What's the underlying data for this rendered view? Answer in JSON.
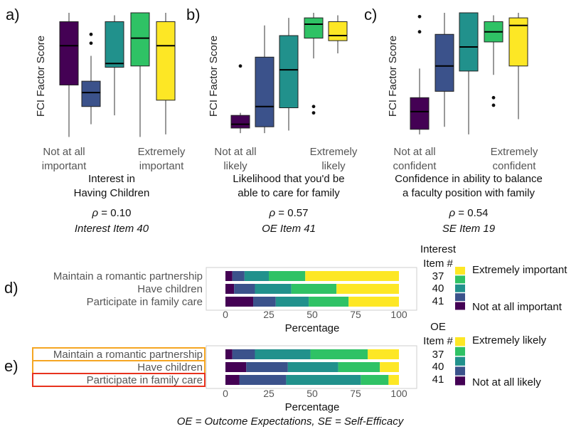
{
  "palette": [
    "#440154",
    "#3b528b",
    "#21918c",
    "#2fc265",
    "#fde725"
  ],
  "chart_data": [
    {
      "panel": "a)",
      "type": "boxplot",
      "ylabel": "FCI Factor Score",
      "xtick_left": [
        "Not at all",
        "important"
      ],
      "xtick_right": [
        "Extremely",
        "important"
      ],
      "caption": [
        "Interest in",
        "Having Children"
      ],
      "rho_symbol": "ρ",
      "rho_value": " = 0.10",
      "item": "Interest Item 40",
      "ylim": [
        0,
        100
      ],
      "boxes": [
        {
          "level": 1,
          "lo": 2,
          "q1": 43,
          "med": 74,
          "q3": 93,
          "hi": 100,
          "outliers": []
        },
        {
          "level": 2,
          "lo": 12,
          "q1": 26,
          "med": 37,
          "q3": 46,
          "hi": 66,
          "outliers": [
            76,
            83
          ]
        },
        {
          "level": 3,
          "lo": 19,
          "q1": 57,
          "med": 60,
          "q3": 93,
          "hi": 98,
          "outliers": []
        },
        {
          "level": 4,
          "lo": 2,
          "q1": 58,
          "med": 80,
          "q3": 100,
          "hi": 100,
          "outliers": []
        },
        {
          "level": 5,
          "lo": 4,
          "q1": 31,
          "med": 74,
          "q3": 93,
          "hi": 100,
          "outliers": []
        }
      ]
    },
    {
      "panel": "b)",
      "type": "boxplot",
      "ylabel": "FCI Factor Score",
      "xtick_left": [
        "Not at all",
        "likely"
      ],
      "xtick_right": [
        "Extremely",
        "likely"
      ],
      "caption": [
        "Likelihood that you'd be",
        "able to care for family"
      ],
      "rho_symbol": "ρ",
      "rho_value": " = 0.57",
      "item": "OE Item 41",
      "ylim": [
        0,
        100
      ],
      "boxes": [
        {
          "level": 1,
          "lo": 5,
          "q1": 9,
          "med": 12,
          "q3": 19,
          "hi": 21,
          "outliers": [
            58
          ]
        },
        {
          "level": 2,
          "lo": 5,
          "q1": 10,
          "med": 26,
          "q3": 65,
          "hi": 90,
          "outliers": []
        },
        {
          "level": 3,
          "lo": 7,
          "q1": 25,
          "med": 55,
          "q3": 82,
          "hi": 96,
          "outliers": []
        },
        {
          "level": 4,
          "lo": 64,
          "q1": 80,
          "med": 91,
          "q3": 96,
          "hi": 100,
          "outliers": [
            21,
            26
          ]
        },
        {
          "level": 5,
          "lo": 68,
          "q1": 78,
          "med": 82,
          "q3": 93,
          "hi": 98,
          "outliers": []
        }
      ]
    },
    {
      "panel": "c)",
      "type": "boxplot",
      "ylabel": "FCI Factor Score",
      "xtick_left": [
        "Not at all",
        "confident"
      ],
      "xtick_right": [
        "Extremely",
        "confident"
      ],
      "caption": [
        "Confidence in ability to balance",
        "a faculty position with family"
      ],
      "rho_symbol": "ρ",
      "rho_value": " = 0.54",
      "item": "SE Item 19",
      "ylim": [
        0,
        100
      ],
      "boxes": [
        {
          "level": 1,
          "lo": 4,
          "q1": 8,
          "med": 22,
          "q3": 33,
          "hi": 56,
          "outliers": [
            85,
            97
          ]
        },
        {
          "level": 2,
          "lo": 10,
          "q1": 38,
          "med": 58,
          "q3": 83,
          "hi": 100,
          "outliers": []
        },
        {
          "level": 3,
          "lo": 4,
          "q1": 54,
          "med": 73,
          "q3": 100,
          "hi": 100,
          "outliers": []
        },
        {
          "level": 4,
          "lo": 51,
          "q1": 77,
          "med": 85,
          "q3": 93,
          "hi": 98,
          "outliers": [
            27,
            33
          ]
        },
        {
          "level": 5,
          "lo": 16,
          "q1": 58,
          "med": 90,
          "q3": 96,
          "hi": 100,
          "outliers": []
        }
      ]
    },
    {
      "panel": "d)",
      "type": "stacked-bar",
      "categories": [
        "Maintain a romantic partnership",
        "Have children",
        "Participate in family care"
      ],
      "item_numbers": [
        "37",
        "40",
        "41"
      ],
      "xlabel": "Percentage",
      "xticks": [
        "0",
        "25",
        "50",
        "75",
        "100"
      ],
      "xlim": [
        0,
        100
      ],
      "legend_title": [
        "Interest",
        "Item #"
      ],
      "legend_top": "Extremely important",
      "legend_bottom": "Not at all important",
      "highlight": [],
      "segments": [
        [
          4,
          7,
          14,
          21,
          54
        ],
        [
          5,
          12,
          21,
          26,
          36
        ],
        [
          16,
          13,
          19,
          23,
          29
        ]
      ]
    },
    {
      "panel": "e)",
      "type": "stacked-bar",
      "categories": [
        "Maintain a romantic partnership",
        "Have children",
        "Participate in family care"
      ],
      "item_numbers": [
        "37",
        "40",
        "41"
      ],
      "xlabel": "Percentage",
      "xticks": [
        "0",
        "25",
        "50",
        "75",
        "100"
      ],
      "xlim": [
        0,
        100
      ],
      "legend_title": [
        "OE",
        "Item #"
      ],
      "legend_top": "Extremely likely",
      "legend_bottom": "Not at all likely",
      "highlight": [
        {
          "row": 0,
          "color": "#f5a623"
        },
        {
          "row": 1,
          "color": "#f5a623"
        },
        {
          "row": 2,
          "color": "#e8321e"
        }
      ],
      "segments": [
        [
          4,
          13,
          32,
          33,
          18
        ],
        [
          12,
          24,
          29,
          24,
          11
        ],
        [
          8,
          27,
          43,
          16,
          6
        ]
      ]
    }
  ],
  "footnote": "OE = Outcome Expectations, SE = Self-Efficacy"
}
